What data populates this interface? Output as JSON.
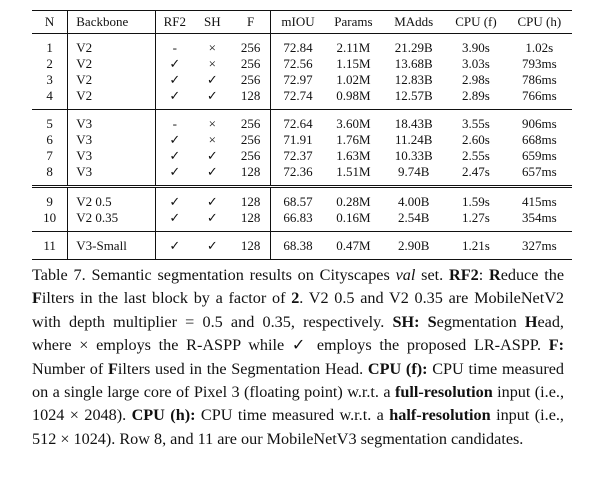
{
  "table": {
    "headers": [
      "N",
      "Backbone",
      "RF2",
      "SH",
      "F",
      "mIOU",
      "Params",
      "MAdds",
      "CPU (f)",
      "CPU (h)"
    ],
    "groups": [
      [
        [
          "1",
          "V2",
          "-",
          "×",
          "256",
          "72.84",
          "2.11M",
          "21.29B",
          "3.90s",
          "1.02s"
        ],
        [
          "2",
          "V2",
          "✓",
          "×",
          "256",
          "72.56",
          "1.15M",
          "13.68B",
          "3.03s",
          "793ms"
        ],
        [
          "3",
          "V2",
          "✓",
          "✓",
          "256",
          "72.97",
          "1.02M",
          "12.83B",
          "2.98s",
          "786ms"
        ],
        [
          "4",
          "V2",
          "✓",
          "✓",
          "128",
          "72.74",
          "0.98M",
          "12.57B",
          "2.89s",
          "766ms"
        ]
      ],
      [
        [
          "5",
          "V3",
          "-",
          "×",
          "256",
          "72.64",
          "3.60M",
          "18.43B",
          "3.55s",
          "906ms"
        ],
        [
          "6",
          "V3",
          "✓",
          "×",
          "256",
          "71.91",
          "1.76M",
          "11.24B",
          "2.60s",
          "668ms"
        ],
        [
          "7",
          "V3",
          "✓",
          "✓",
          "256",
          "72.37",
          "1.63M",
          "10.33B",
          "2.55s",
          "659ms"
        ],
        [
          "8",
          "V3",
          "✓",
          "✓",
          "128",
          "72.36",
          "1.51M",
          "9.74B",
          "2.47s",
          "657ms"
        ]
      ],
      [
        [
          "9",
          "V2 0.5",
          "✓",
          "✓",
          "128",
          "68.57",
          "0.28M",
          "4.00B",
          "1.59s",
          "415ms"
        ],
        [
          "10",
          "V2 0.35",
          "✓",
          "✓",
          "128",
          "66.83",
          "0.16M",
          "2.54B",
          "1.27s",
          "354ms"
        ]
      ],
      [
        [
          "11",
          "V3-Small",
          "✓",
          "✓",
          "128",
          "68.38",
          "0.47M",
          "2.90B",
          "1.21s",
          "327ms"
        ]
      ]
    ]
  },
  "caption": [
    [
      "t",
      "Table 7. Semantic segmentation results on Cityscapes "
    ],
    [
      "i",
      "val"
    ],
    [
      "t",
      " set. "
    ],
    [
      "b",
      "RF2"
    ],
    [
      "t",
      ": "
    ],
    [
      "b",
      "R"
    ],
    [
      "t",
      "educe the "
    ],
    [
      "b",
      "F"
    ],
    [
      "t",
      "ilters in the last block by a factor of "
    ],
    [
      "b",
      "2"
    ],
    [
      "t",
      ".  V2 0.5 and V2 0.35 are MobileNetV2 with depth multiplier = 0.5 and 0.35, respectively.  "
    ],
    [
      "b",
      "SH: S"
    ],
    [
      "t",
      "egmentation "
    ],
    [
      "b",
      "H"
    ],
    [
      "t",
      "ead, where × employs the R-ASPP while ✓ employs the proposed LR-ASPP. "
    ],
    [
      "b",
      "F:"
    ],
    [
      "t",
      " Number of "
    ],
    [
      "b",
      "F"
    ],
    [
      "t",
      "ilters used in the Segmentation Head.  "
    ],
    [
      "b",
      "CPU (f):"
    ],
    [
      "t",
      " CPU time measured on a single large core of Pixel 3 (floating point) w.r.t. a "
    ],
    [
      "b",
      "full-resolution"
    ],
    [
      "t",
      " input (i.e., 1024 × 2048). "
    ],
    [
      "b",
      "CPU (h):"
    ],
    [
      "t",
      " CPU time measured w.r.t. a "
    ],
    [
      "b",
      "half-resolution"
    ],
    [
      "t",
      " input (i.e., 512 × 1024). Row 8, and 11 are our MobileNetV3 segmentation candidates."
    ]
  ]
}
